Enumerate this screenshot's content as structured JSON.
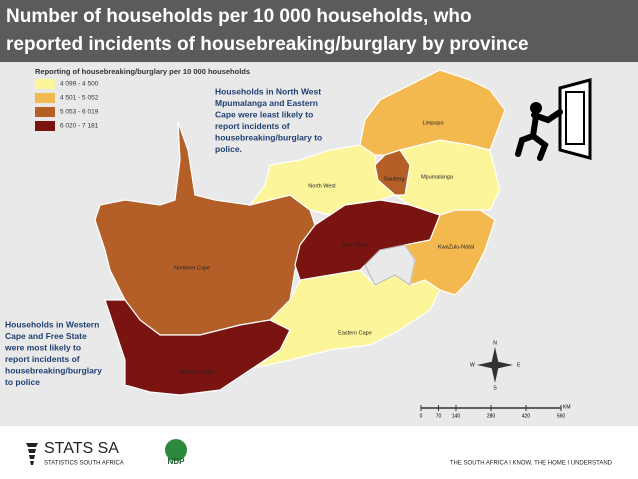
{
  "header": {
    "title_lines": [
      "Number of households per 10 000 households, who",
      "reported incidents of housebreaking/burglary by province"
    ]
  },
  "map": {
    "legend_title": "Reporting of housebreaking/burglary per 10 000 households",
    "legend": [
      {
        "label": "4 099 - 4 500",
        "color": "#fcf59a"
      },
      {
        "label": "4 501 - 5 052",
        "color": "#f3b84e"
      },
      {
        "label": "5 053 - 6 019",
        "color": "#b55f28"
      },
      {
        "label": "6 020 - 7 181",
        "color": "#7a1411"
      }
    ],
    "provinces": [
      {
        "name": "Northern Cape",
        "color": "#b55f28"
      },
      {
        "name": "Western Cape",
        "color": "#7a1411"
      },
      {
        "name": "Eastern Cape",
        "color": "#fcf59a"
      },
      {
        "name": "Free State",
        "color": "#7a1411"
      },
      {
        "name": "KwaZulu-Natal",
        "color": "#f3b84e"
      },
      {
        "name": "North West",
        "color": "#fcf59a"
      },
      {
        "name": "Mpumalanga",
        "color": "#fcf59a"
      },
      {
        "name": "Limpopo",
        "color": "#f3b84e"
      },
      {
        "name": "Gauteng",
        "color": "#b55f28"
      }
    ],
    "note_top": [
      "Households in North West",
      "Mpumalanga and Eastern",
      "Cape were least likely to",
      "report incidents of",
      "housebreaking/burglary to",
      "police."
    ],
    "note_bottom": [
      "Households in Western",
      "Cape and Free State",
      "were most likely to",
      "report incidents of",
      "housebreaking/burglary",
      "to police"
    ],
    "scale": {
      "ticks": [
        0,
        70,
        140,
        280,
        420,
        560
      ],
      "unit": "KM"
    },
    "compass": {
      "n": "N",
      "s": "S",
      "e": "E",
      "w": "W"
    }
  },
  "footer": {
    "logo": "STATS SA",
    "logo_sub": "STATISTICS SOUTH AFRICA",
    "ndp": "NDP",
    "tagline": "THE SOUTH AFRICA I KNOW, THE HOME I UNDERSTAND"
  }
}
